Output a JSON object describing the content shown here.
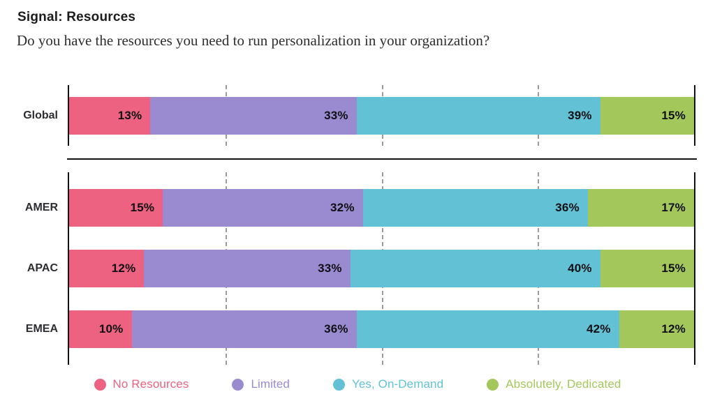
{
  "header": {
    "title": "Signal: Resources",
    "subtitle": "Do you have the resources you need to run personalization in your organization?"
  },
  "colors": {
    "no_resources": "#ec6280",
    "limited": "#9a8bd0",
    "yes_on_demand": "#62c1d5",
    "absolutely_dedicated": "#a4c75c",
    "axis": "#121212",
    "gridline": "#9b9b9b",
    "value_text": "#101014"
  },
  "chart_data": {
    "type": "bar",
    "stacked": true,
    "orientation": "horizontal",
    "unit": "%",
    "xlim": [
      0,
      100
    ],
    "gridlines_percent": [
      25,
      50,
      75
    ],
    "legend_position": "bottom",
    "group_sections": [
      [
        "Global"
      ],
      [
        "AMER",
        "APAC",
        "EMEA"
      ]
    ],
    "categories": [
      "Global",
      "AMER",
      "APAC",
      "EMEA"
    ],
    "series": [
      {
        "name": "No Resources",
        "color": "#ec6280",
        "values": [
          13,
          15,
          12,
          10
        ]
      },
      {
        "name": "Limited",
        "color": "#9a8bd0",
        "values": [
          33,
          32,
          33,
          36
        ]
      },
      {
        "name": "Yes, On-Demand",
        "color": "#62c1d5",
        "values": [
          39,
          36,
          40,
          42
        ]
      },
      {
        "name": "Absolutely, Dedicated",
        "color": "#a4c75c",
        "values": [
          15,
          17,
          15,
          12
        ]
      }
    ]
  },
  "legend": {
    "items": [
      {
        "label": "No Resources",
        "color": "#ec6280"
      },
      {
        "label": "Limited",
        "color": "#9a8bd0"
      },
      {
        "label": "Yes, On-Demand",
        "color": "#62c1d5"
      },
      {
        "label": "Absolutely, Dedicated",
        "color": "#a4c75c"
      }
    ]
  }
}
